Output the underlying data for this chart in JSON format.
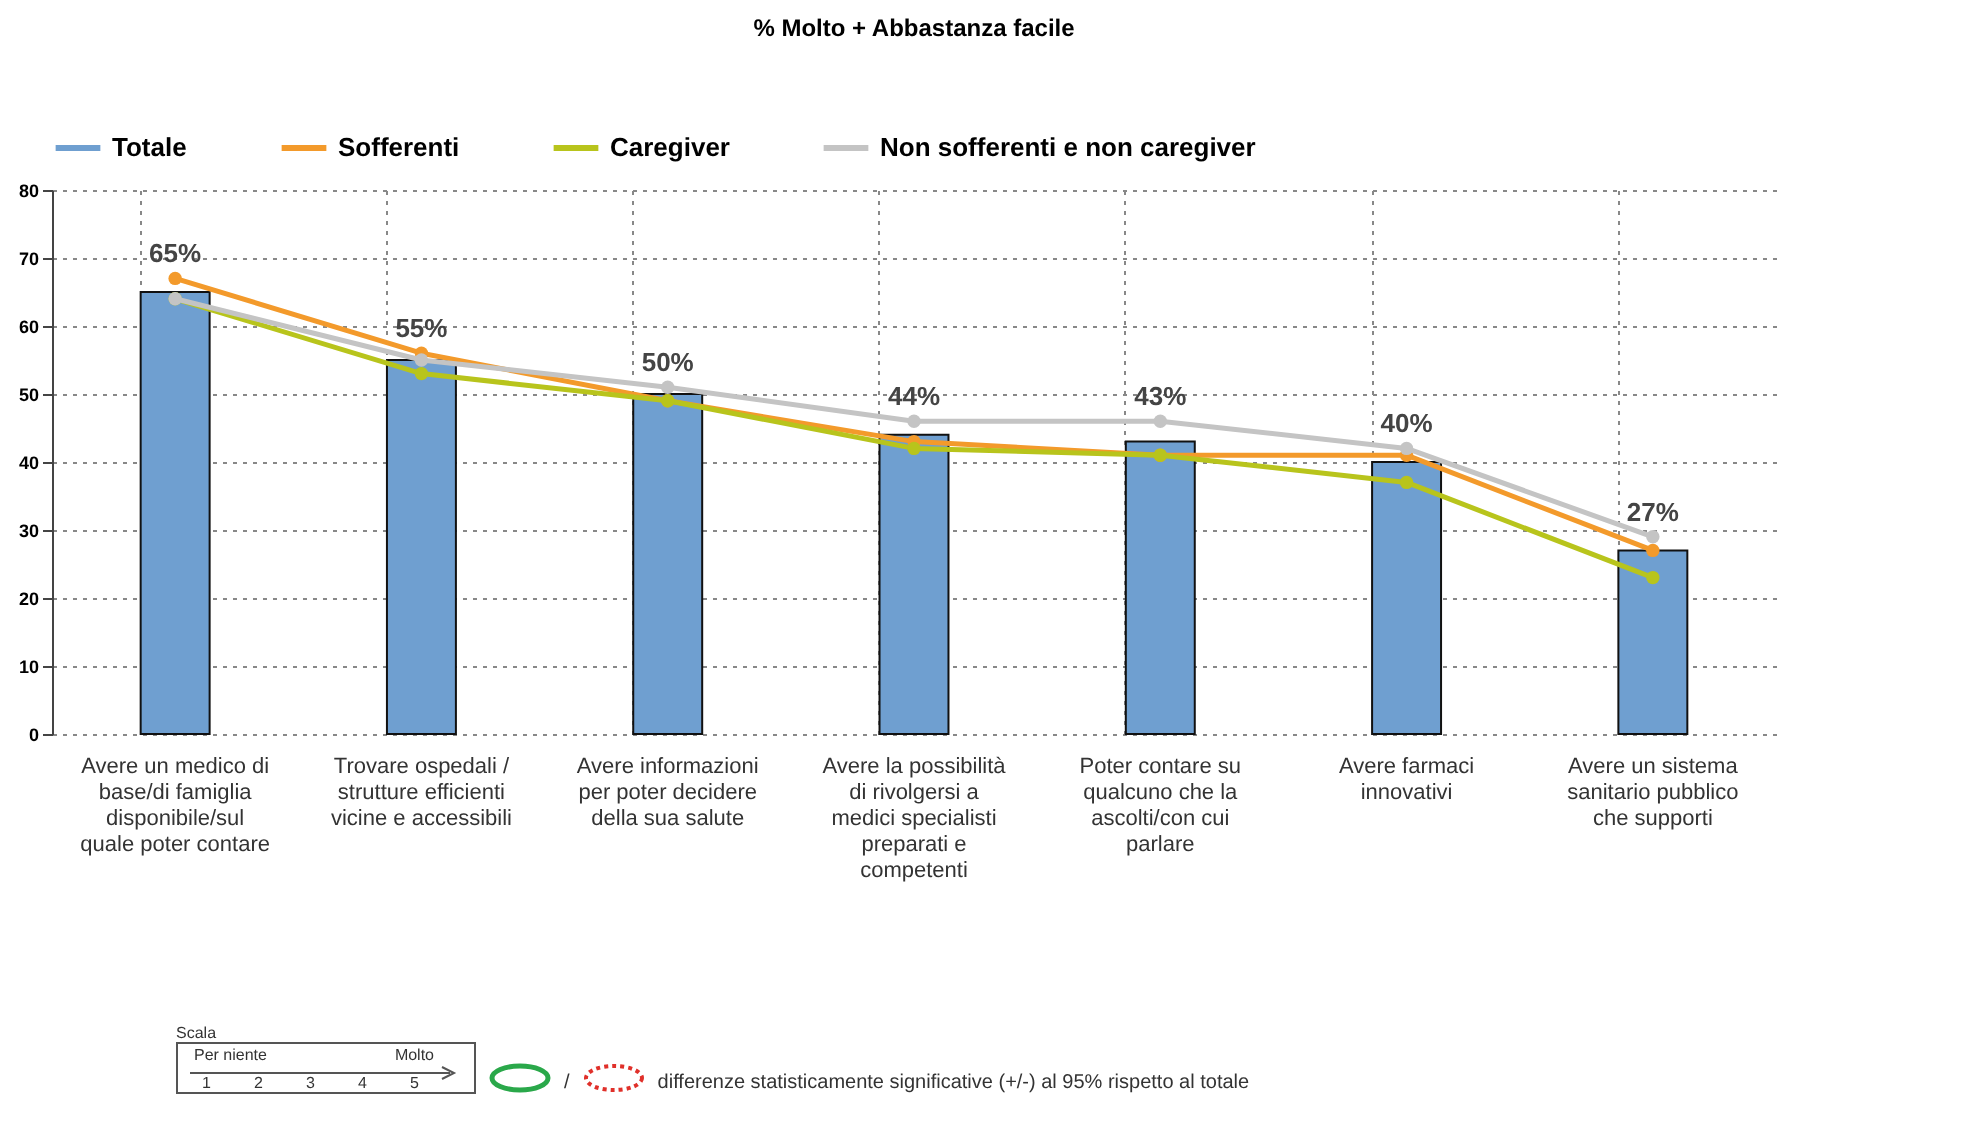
{
  "chart_data": {
    "type": "bar",
    "title": "% Molto + Abbastanza facile",
    "categories": [
      "Avere un medico di base/di famiglia disponibile/sul quale poter contare",
      "Trovare ospedali / strutture efficienti vicine e accessibili",
      "Avere informazioni per poter decidere della sua salute",
      "Avere la possibilità di rivolgersi a medici specialisti preparati e competenti",
      "Poter contare su qualcuno che la ascolti/con cui parlare",
      "Avere farmaci innovativi",
      "Avere un sistema sanitario pubblico che supporti"
    ],
    "series": [
      {
        "name": "Totale",
        "color": "#6f9fd0",
        "values": [
          65,
          55,
          50,
          44,
          43,
          40,
          27
        ],
        "value_labels": [
          "65%",
          "55%",
          "50%",
          "44%",
          "43%",
          "40%",
          "27%"
        ]
      },
      {
        "name": "Sofferenti",
        "type": "line",
        "color": "#f39a2b",
        "values": [
          67,
          56,
          49,
          43,
          41,
          41,
          27
        ]
      },
      {
        "name": "Caregiver",
        "type": "line",
        "color": "#b8c41c",
        "values": [
          64,
          53,
          49,
          42,
          41,
          37,
          23
        ]
      },
      {
        "name": "Non sofferenti e non caregiver",
        "type": "line",
        "color": "#c4c4c4",
        "values": [
          64,
          55,
          51,
          46,
          46,
          42,
          29
        ]
      }
    ],
    "ylim": [
      0,
      80
    ],
    "yticks": [
      0,
      10,
      20,
      30,
      40,
      50,
      60,
      70,
      80
    ],
    "grid": true,
    "legend": "top",
    "marker": "circle",
    "line_style": "solid",
    "annotations": [
      "Scala",
      "Per niente",
      "Molto",
      "1",
      "2",
      "3",
      "4",
      "5",
      "/",
      "differenze statisticamente significative (+/-) al 95% rispetto al totale"
    ]
  }
}
